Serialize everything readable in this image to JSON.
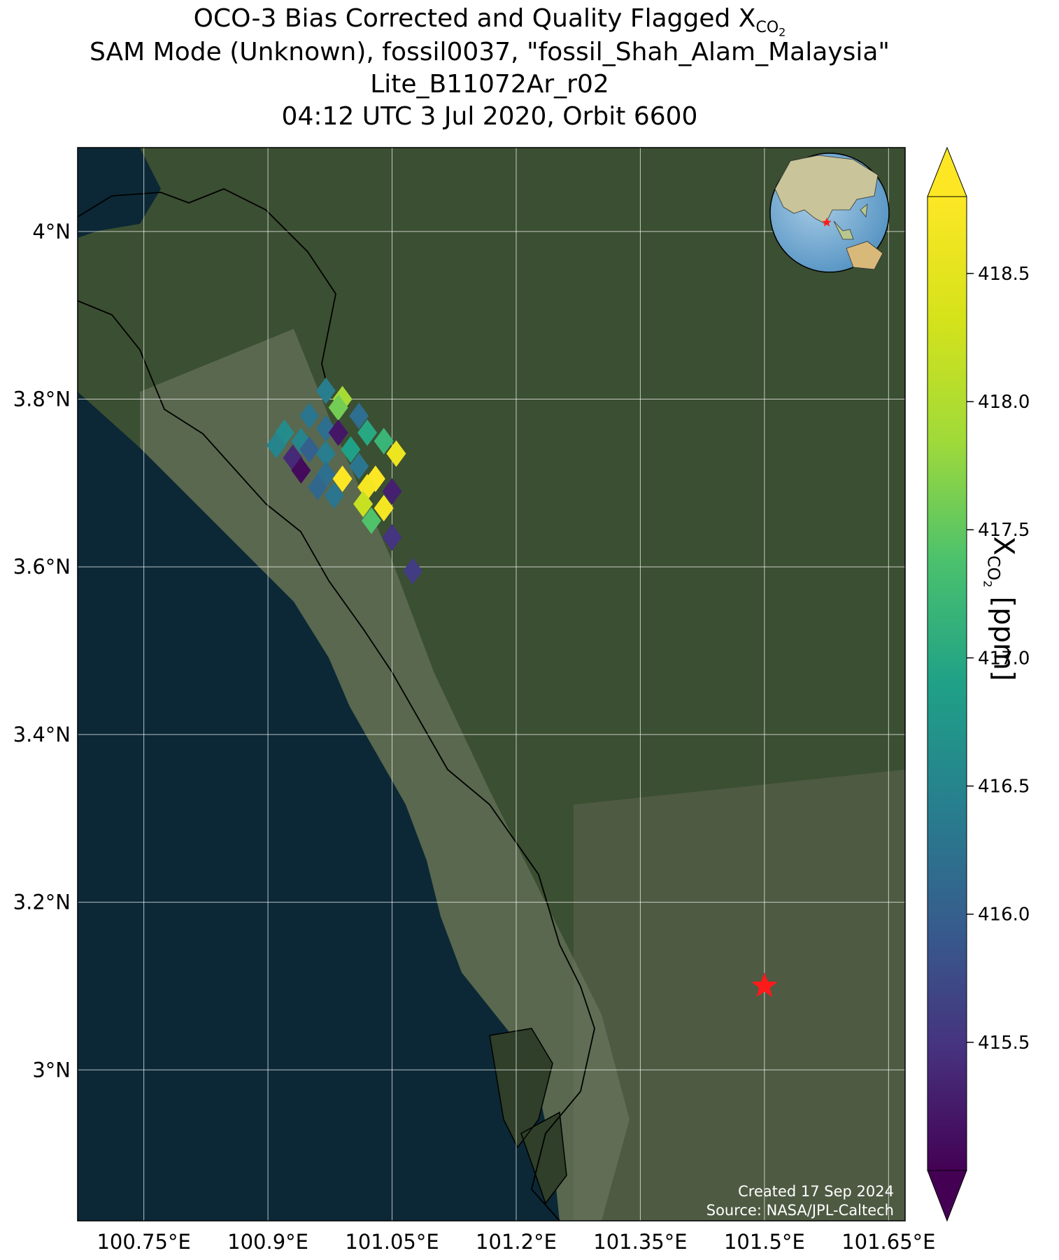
{
  "title": {
    "line1_prefix": "OCO-3 Bias Corrected and Quality Flagged X",
    "line1_sub": "CO",
    "line1_sub2": "2",
    "line2": "SAM Mode (Unknown), fossil0037, \"fossil_Shah_Alam_Malaysia\"",
    "line3": "Lite_B11072Ar_r02",
    "line4": "04:12 UTC 3 Jul 2020, Orbit 6600"
  },
  "map": {
    "lon_range": [
      100.67,
      101.67
    ],
    "lat_range": [
      2.82,
      4.1
    ],
    "lon_ticks": [
      "100.75°E",
      "100.9°E",
      "101.05°E",
      "101.2°E",
      "101.35°E",
      "101.5°E",
      "101.65°E"
    ],
    "lon_tick_values": [
      100.75,
      100.9,
      101.05,
      101.2,
      101.35,
      101.5,
      101.65
    ],
    "lat_ticks": [
      "4°N",
      "3.8°N",
      "3.6°N",
      "3.4°N",
      "3.2°N",
      "3°N"
    ],
    "lat_tick_values": [
      4.0,
      3.8,
      3.6,
      3.4,
      3.2,
      3.0
    ],
    "grid": true,
    "colors": {
      "ocean": "#0c2836",
      "land": "#3b4f32",
      "coast": "#000000",
      "target": "#ff1a1a"
    },
    "target": {
      "name": "fossil_Shah_Alam_Malaysia",
      "lon": 101.5,
      "lat": 3.1
    },
    "inset": "globe-locator-icon",
    "soundings": [
      {
        "lon": 100.97,
        "lat": 3.81,
        "xco2": 416.4
      },
      {
        "lon": 100.99,
        "lat": 3.8,
        "xco2": 417.9
      },
      {
        "lon": 100.985,
        "lat": 3.79,
        "xco2": 417.6
      },
      {
        "lon": 100.95,
        "lat": 3.78,
        "xco2": 416.3
      },
      {
        "lon": 101.01,
        "lat": 3.78,
        "xco2": 416.2
      },
      {
        "lon": 100.92,
        "lat": 3.76,
        "xco2": 416.6
      },
      {
        "lon": 100.97,
        "lat": 3.765,
        "xco2": 416.2
      },
      {
        "lon": 100.985,
        "lat": 3.76,
        "xco2": 415.2
      },
      {
        "lon": 101.02,
        "lat": 3.76,
        "xco2": 417.0
      },
      {
        "lon": 100.94,
        "lat": 3.75,
        "xco2": 416.5
      },
      {
        "lon": 101.04,
        "lat": 3.75,
        "xco2": 417.2
      },
      {
        "lon": 100.91,
        "lat": 3.745,
        "xco2": 416.5
      },
      {
        "lon": 100.95,
        "lat": 3.74,
        "xco2": 416.0
      },
      {
        "lon": 100.97,
        "lat": 3.735,
        "xco2": 416.4
      },
      {
        "lon": 101.0,
        "lat": 3.74,
        "xco2": 416.9
      },
      {
        "lon": 101.055,
        "lat": 3.735,
        "xco2": 418.6
      },
      {
        "lon": 100.93,
        "lat": 3.73,
        "xco2": 415.4
      },
      {
        "lon": 101.01,
        "lat": 3.72,
        "xco2": 416.3
      },
      {
        "lon": 100.94,
        "lat": 3.715,
        "xco2": 415.1
      },
      {
        "lon": 100.97,
        "lat": 3.71,
        "xco2": 416.2
      },
      {
        "lon": 100.99,
        "lat": 3.705,
        "xco2": 418.8
      },
      {
        "lon": 101.03,
        "lat": 3.705,
        "xco2": 418.9
      },
      {
        "lon": 100.96,
        "lat": 3.695,
        "xco2": 416.1
      },
      {
        "lon": 101.02,
        "lat": 3.695,
        "xco2": 418.7
      },
      {
        "lon": 100.98,
        "lat": 3.685,
        "xco2": 416.3
      },
      {
        "lon": 101.05,
        "lat": 3.69,
        "xco2": 415.3
      },
      {
        "lon": 101.015,
        "lat": 3.675,
        "xco2": 418.2
      },
      {
        "lon": 101.04,
        "lat": 3.67,
        "xco2": 418.7
      },
      {
        "lon": 101.025,
        "lat": 3.655,
        "xco2": 417.4
      },
      {
        "lon": 101.05,
        "lat": 3.635,
        "xco2": 415.5
      },
      {
        "lon": 101.075,
        "lat": 3.595,
        "xco2": 415.6
      }
    ]
  },
  "colorbar": {
    "min": 415.0,
    "max": 418.8,
    "ticks": [
      "415.5",
      "416.0",
      "416.5",
      "417.0",
      "417.5",
      "418.0",
      "418.5"
    ],
    "tick_values": [
      415.5,
      416.0,
      416.5,
      417.0,
      417.5,
      418.0,
      418.5
    ],
    "colormap": "viridis",
    "extend": "both",
    "label_prefix": "X",
    "label_sub": "CO",
    "label_sub2": "2",
    "label_suffix": " [ppm]"
  },
  "credit": {
    "line1": "Created 17 Sep 2024",
    "line2": "Source: NASA/JPL-Caltech"
  }
}
